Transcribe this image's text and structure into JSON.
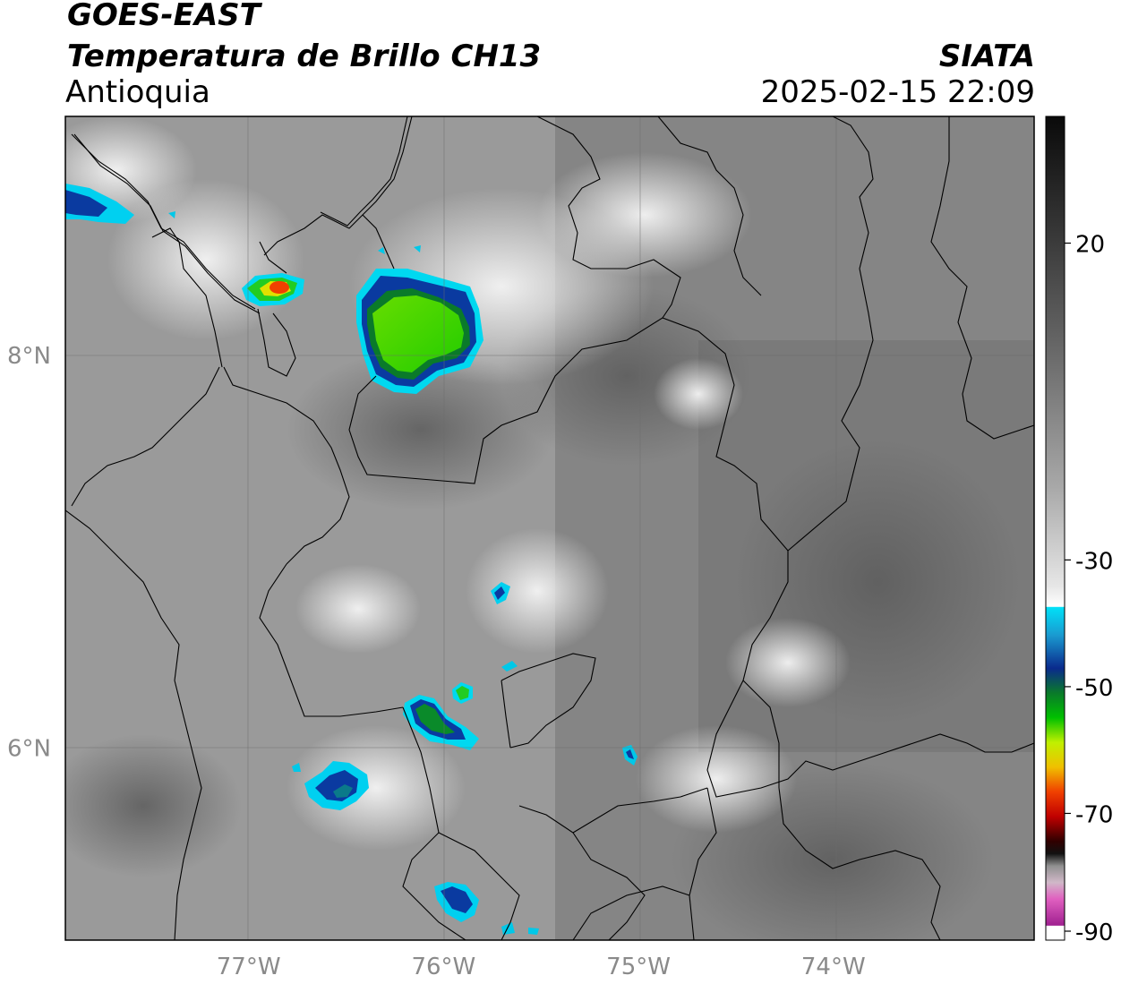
{
  "header": {
    "source": "GOES-EAST",
    "product": "Temperatura de Brillo CH13",
    "region": "Antioquia",
    "organization": "SIATA",
    "datetime": "2025-02-15 22:09"
  },
  "map": {
    "lat_labels": [
      "8°N",
      "6°N"
    ],
    "lon_labels": [
      "77°W",
      "76°W",
      "75°W",
      "74°W"
    ],
    "lat_values": [
      8,
      6
    ],
    "lon_values": [
      -77,
      -76,
      -75,
      -74
    ],
    "lat_range": [
      5.02,
      9.22
    ],
    "lon_range": [
      -77.94,
      -72.97
    ],
    "gridlines": true,
    "background": "grayscale infrared brightness temperature",
    "cold_cloud_color": "#00e000"
  },
  "colorbar": {
    "tick_labels": [
      "20",
      "-30",
      "-50",
      "-70",
      "-90"
    ],
    "tick_values": [
      20,
      -30,
      -50,
      -70,
      -90
    ],
    "range": [
      -90,
      40
    ],
    "colors": {
      "warm_top": "#111111",
      "warm_mid": "#7f7f7f",
      "warm_low": "#f2f2f2",
      "cyan": "#00d8f0",
      "blue": "#0a2a8c",
      "green": "#00c000",
      "yellow": "#f0f000",
      "red": "#e00000",
      "dark_red": "#400000",
      "purple": "#a0308c"
    }
  }
}
